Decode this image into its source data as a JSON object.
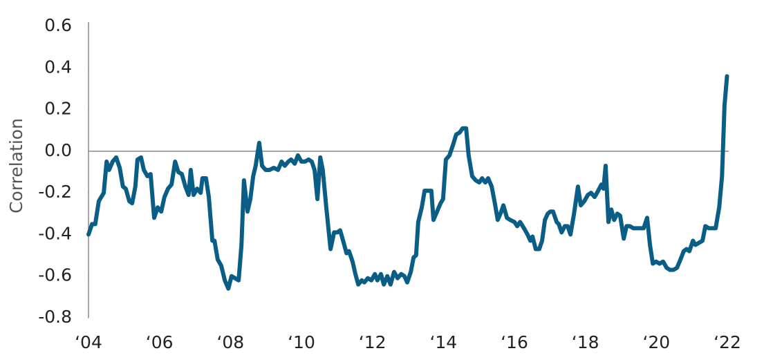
{
  "chart_data": {
    "type": "line",
    "y_label": "Correlation",
    "x": [
      2004.0,
      2004.1,
      2004.19,
      2004.29,
      2004.43,
      2004.51,
      2004.58,
      2004.68,
      2004.78,
      2004.88,
      2004.97,
      2005.05,
      2005.15,
      2005.23,
      2005.32,
      2005.38,
      2005.48,
      2005.56,
      2005.66,
      2005.75,
      2005.85,
      2005.95,
      2006.05,
      2006.14,
      2006.24,
      2006.34,
      2006.44,
      2006.53,
      2006.63,
      2006.73,
      2006.82,
      2006.88,
      2006.96,
      2007.06,
      2007.16,
      2007.21,
      2007.31,
      2007.39,
      2007.49,
      2007.55,
      2007.64,
      2007.74,
      2007.84,
      2007.94,
      2008.03,
      2008.13,
      2008.23,
      2008.31,
      2008.38,
      2008.48,
      2008.56,
      2008.64,
      2008.71,
      2008.81,
      2008.89,
      2008.99,
      2009.1,
      2009.22,
      2009.34,
      2009.44,
      2009.53,
      2009.63,
      2009.71,
      2009.81,
      2009.9,
      2010.0,
      2010.1,
      2010.2,
      2010.29,
      2010.37,
      2010.45,
      2010.53,
      2010.6,
      2010.7,
      2010.82,
      2010.92,
      2011.01,
      2011.09,
      2011.19,
      2011.27,
      2011.34,
      2011.44,
      2011.52,
      2011.6,
      2011.7,
      2011.77,
      2011.87,
      2011.97,
      2012.07,
      2012.14,
      2012.24,
      2012.32,
      2012.42,
      2012.51,
      2012.61,
      2012.71,
      2012.81,
      2012.9,
      2012.98,
      2013.08,
      2013.16,
      2013.23,
      2013.29,
      2013.39,
      2013.47,
      2013.57,
      2013.66,
      2013.72,
      2013.82,
      2013.92,
      2013.99,
      2014.07,
      2014.17,
      2014.27,
      2014.36,
      2014.46,
      2014.54,
      2014.64,
      2014.71,
      2014.81,
      2014.91,
      2015.01,
      2015.09,
      2015.18,
      2015.26,
      2015.36,
      2015.46,
      2015.53,
      2015.63,
      2015.69,
      2015.79,
      2015.88,
      2016.0,
      2016.08,
      2016.16,
      2016.27,
      2016.37,
      2016.45,
      2016.51,
      2016.6,
      2016.7,
      2016.78,
      2016.86,
      2016.94,
      2017.01,
      2017.09,
      2017.19,
      2017.25,
      2017.33,
      2017.42,
      2017.5,
      2017.58,
      2017.68,
      2017.79,
      2017.87,
      2017.97,
      2018.07,
      2018.16,
      2018.26,
      2018.36,
      2018.45,
      2018.51,
      2018.57,
      2018.65,
      2018.73,
      2018.81,
      2018.9,
      2018.98,
      2019.08,
      2019.16,
      2019.25,
      2019.35,
      2019.45,
      2019.55,
      2019.64,
      2019.74,
      2019.82,
      2019.9,
      2019.99,
      2020.09,
      2020.19,
      2020.29,
      2020.38,
      2020.48,
      2020.58,
      2020.68,
      2020.77,
      2020.85,
      2020.93,
      2021.03,
      2021.1,
      2021.2,
      2021.3,
      2021.38,
      2021.48,
      2021.57,
      2021.67,
      2021.77,
      2021.85,
      2021.92,
      2021.99
    ],
    "series": [
      {
        "color": "#0a5e86",
        "values": [
          -0.4,
          -0.35,
          -0.35,
          -0.24,
          -0.2,
          -0.05,
          -0.09,
          -0.05,
          -0.03,
          -0.08,
          -0.17,
          -0.18,
          -0.24,
          -0.25,
          -0.17,
          -0.04,
          -0.03,
          -0.09,
          -0.12,
          -0.11,
          -0.32,
          -0.27,
          -0.29,
          -0.22,
          -0.18,
          -0.16,
          -0.05,
          -0.1,
          -0.11,
          -0.17,
          -0.21,
          -0.09,
          -0.21,
          -0.18,
          -0.2,
          -0.13,
          -0.13,
          -0.22,
          -0.43,
          -0.43,
          -0.52,
          -0.55,
          -0.62,
          -0.66,
          -0.6,
          -0.61,
          -0.62,
          -0.45,
          -0.14,
          -0.29,
          -0.23,
          -0.12,
          -0.07,
          0.04,
          -0.07,
          -0.09,
          -0.09,
          -0.08,
          -0.09,
          -0.05,
          -0.07,
          -0.05,
          -0.04,
          -0.06,
          -0.02,
          -0.05,
          -0.05,
          -0.04,
          -0.05,
          -0.09,
          -0.23,
          -0.03,
          -0.09,
          -0.27,
          -0.47,
          -0.39,
          -0.39,
          -0.38,
          -0.44,
          -0.49,
          -0.48,
          -0.53,
          -0.59,
          -0.64,
          -0.62,
          -0.63,
          -0.61,
          -0.62,
          -0.59,
          -0.62,
          -0.59,
          -0.64,
          -0.6,
          -0.64,
          -0.58,
          -0.61,
          -0.59,
          -0.6,
          -0.63,
          -0.58,
          -0.51,
          -0.5,
          -0.34,
          -0.27,
          -0.19,
          -0.19,
          -0.19,
          -0.33,
          -0.29,
          -0.25,
          -0.23,
          -0.04,
          -0.02,
          0.03,
          0.08,
          0.09,
          0.11,
          0.11,
          -0.02,
          -0.12,
          -0.14,
          -0.15,
          -0.13,
          -0.15,
          -0.13,
          -0.17,
          -0.26,
          -0.33,
          -0.29,
          -0.26,
          -0.32,
          -0.33,
          -0.34,
          -0.36,
          -0.34,
          -0.37,
          -0.4,
          -0.43,
          -0.41,
          -0.47,
          -0.47,
          -0.43,
          -0.33,
          -0.3,
          -0.29,
          -0.29,
          -0.34,
          -0.35,
          -0.39,
          -0.36,
          -0.36,
          -0.4,
          -0.3,
          -0.17,
          -0.26,
          -0.24,
          -0.21,
          -0.2,
          -0.22,
          -0.19,
          -0.16,
          -0.18,
          -0.07,
          -0.34,
          -0.28,
          -0.33,
          -0.3,
          -0.31,
          -0.42,
          -0.36,
          -0.36,
          -0.37,
          -0.37,
          -0.37,
          -0.37,
          -0.32,
          -0.45,
          -0.54,
          -0.53,
          -0.54,
          -0.53,
          -0.56,
          -0.57,
          -0.57,
          -0.56,
          -0.52,
          -0.48,
          -0.47,
          -0.48,
          -0.43,
          -0.45,
          -0.44,
          -0.43,
          -0.36,
          -0.37,
          -0.37,
          -0.37,
          -0.27,
          -0.12,
          0.22,
          0.36
        ]
      }
    ],
    "xlim": [
      2004,
      2022
    ],
    "xticks": [
      {
        "value": 2004,
        "label": "‘04"
      },
      {
        "value": 2006,
        "label": "‘06"
      },
      {
        "value": 2008,
        "label": "‘08"
      },
      {
        "value": 2010,
        "label": "‘10"
      },
      {
        "value": 2012,
        "label": "‘12"
      },
      {
        "value": 2014,
        "label": "‘14"
      },
      {
        "value": 2016,
        "label": "‘16"
      },
      {
        "value": 2018,
        "label": "‘18"
      },
      {
        "value": 2020,
        "label": "‘20"
      },
      {
        "value": 2022,
        "label": "‘22"
      }
    ],
    "ylim": [
      -0.8,
      0.6
    ],
    "yticks": [
      0.6,
      0.4,
      0.2,
      {
        "value": 0,
        "label": "0.0"
      },
      -0.2,
      -0.4,
      -0.6,
      -0.8
    ],
    "zero_line": true
  }
}
